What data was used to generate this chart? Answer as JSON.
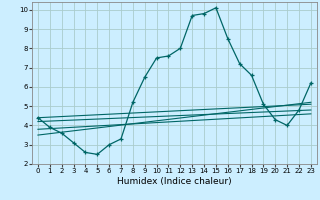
{
  "xlabel": "Humidex (Indice chaleur)",
  "bg_color": "#cceeff",
  "grid_color": "#aacccc",
  "line_color": "#006666",
  "marker_color": "#006666",
  "xlim": [
    -0.5,
    23.5
  ],
  "ylim": [
    2,
    10.4
  ],
  "xticks": [
    0,
    1,
    2,
    3,
    4,
    5,
    6,
    7,
    8,
    9,
    10,
    11,
    12,
    13,
    14,
    15,
    16,
    17,
    18,
    19,
    20,
    21,
    22,
    23
  ],
  "yticks": [
    2,
    3,
    4,
    5,
    6,
    7,
    8,
    9,
    10
  ],
  "main_x": [
    0,
    1,
    2,
    3,
    4,
    5,
    6,
    7,
    8,
    9,
    10,
    11,
    12,
    13,
    14,
    15,
    16,
    17,
    18,
    19,
    20,
    21,
    22,
    23
  ],
  "main_y": [
    4.4,
    3.9,
    3.6,
    3.1,
    2.6,
    2.5,
    3.0,
    3.3,
    5.2,
    6.5,
    7.5,
    7.6,
    8.0,
    9.7,
    9.8,
    10.1,
    8.5,
    7.2,
    6.6,
    5.1,
    4.3,
    4.0,
    4.8,
    6.2
  ],
  "trend_lines": [
    {
      "x": [
        0,
        23
      ],
      "y": [
        4.4,
        5.1
      ]
    },
    {
      "x": [
        0,
        23
      ],
      "y": [
        4.2,
        4.8
      ]
    },
    {
      "x": [
        0,
        23
      ],
      "y": [
        3.8,
        4.6
      ]
    },
    {
      "x": [
        0,
        23
      ],
      "y": [
        3.5,
        5.2
      ]
    }
  ]
}
